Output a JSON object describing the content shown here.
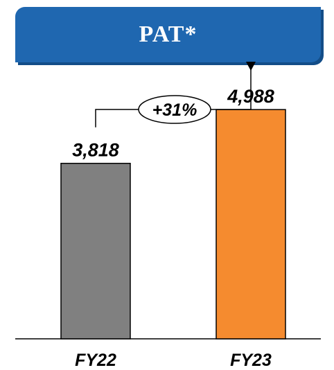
{
  "header": {
    "title": "PAT*"
  },
  "colors": {
    "banner": "#1f67b0",
    "banner_shade": "#134d88",
    "axis": "#000000"
  },
  "chart_data": {
    "type": "bar",
    "title": "PAT*",
    "categories": [
      "FY22",
      "FY23"
    ],
    "values": [
      3818,
      4988
    ],
    "value_labels": [
      "3,818",
      "4,988"
    ],
    "bar_colors": [
      "#808080",
      "#f58b2f"
    ],
    "ylim": [
      0,
      6000
    ],
    "grid": false,
    "legend": "none",
    "annotation": {
      "text": "+31%",
      "from_category": "FY22",
      "to_category": "FY23"
    }
  }
}
